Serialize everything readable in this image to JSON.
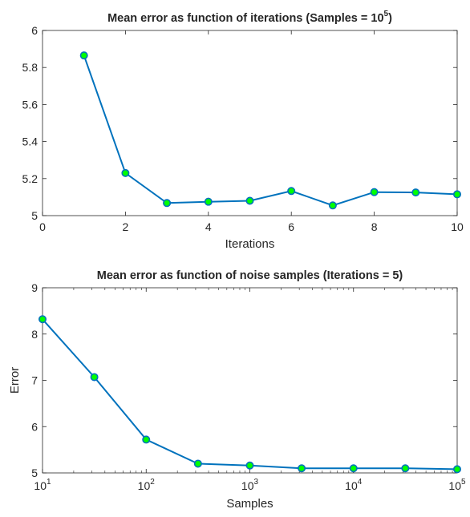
{
  "colors": {
    "line": "#0072bd",
    "marker_fill": "#00ff00",
    "marker_edge": "#0072bd",
    "axes": "#262626"
  },
  "chart_data": [
    {
      "type": "line",
      "title": "Mean error as function of iterations (Samples = 10",
      "title_sup": "5",
      "title_end": ")",
      "xlabel": "Iterations",
      "ylabel": "",
      "xlim": [
        0,
        10
      ],
      "ylim": [
        5,
        6
      ],
      "xscale": "linear",
      "xticks": [
        0,
        2,
        4,
        6,
        8,
        10
      ],
      "xtick_labels": [
        "0",
        "2",
        "4",
        "6",
        "8",
        "10"
      ],
      "yticks": [
        5,
        5.2,
        5.4,
        5.6,
        5.8,
        6
      ],
      "ytick_labels": [
        "5",
        "5.2",
        "5.4",
        "5.6",
        "5.8",
        "6"
      ],
      "grid": false,
      "x": [
        1,
        2,
        3,
        4,
        5,
        6,
        7,
        8,
        9,
        10
      ],
      "y": [
        5.865,
        5.23,
        5.068,
        5.075,
        5.08,
        5.133,
        5.055,
        5.127,
        5.125,
        5.115
      ]
    },
    {
      "type": "line",
      "title": "Mean error as function of noise samples (Iterations = 5)",
      "xlabel": "Samples",
      "ylabel": "Error",
      "xlim": [
        10,
        100000
      ],
      "ylim": [
        5,
        9
      ],
      "xscale": "log",
      "xticks": [
        10,
        100,
        1000,
        10000,
        100000
      ],
      "xtick_labels": [
        {
          "base": "10",
          "exp": "1"
        },
        {
          "base": "10",
          "exp": "2"
        },
        {
          "base": "10",
          "exp": "3"
        },
        {
          "base": "10",
          "exp": "4"
        },
        {
          "base": "10",
          "exp": "5"
        }
      ],
      "yticks": [
        5,
        6,
        7,
        8,
        9
      ],
      "ytick_labels": [
        "5",
        "6",
        "7",
        "8",
        "9"
      ],
      "grid": false,
      "x": [
        10,
        31.6,
        100,
        316,
        1000,
        3160,
        10000,
        31600,
        100000
      ],
      "y": [
        8.32,
        7.07,
        5.72,
        5.2,
        5.16,
        5.1,
        5.1,
        5.1,
        5.08
      ]
    }
  ]
}
